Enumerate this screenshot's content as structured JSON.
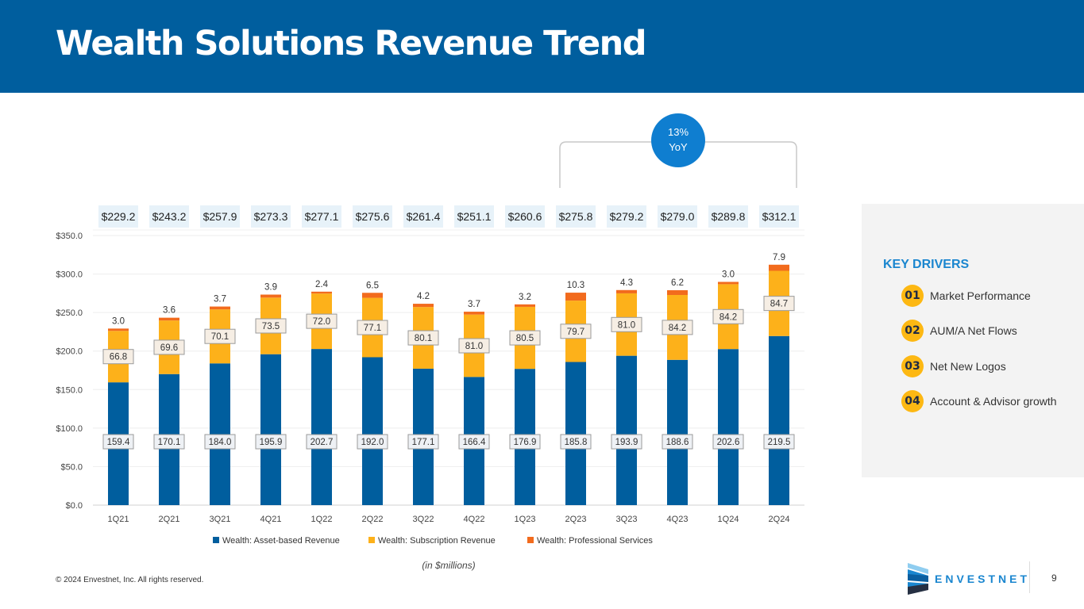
{
  "header": {
    "title": "Wealth Solutions Revenue Trend"
  },
  "callout": {
    "line1": "13%",
    "line2": "YoY",
    "color": "#0f7ed0"
  },
  "chart_data": {
    "type": "bar",
    "stacked": true,
    "title": "",
    "xlabel": "",
    "ylabel": "",
    "units_note": "(in $millions)",
    "categories": [
      "1Q21",
      "2Q21",
      "3Q21",
      "4Q21",
      "1Q22",
      "2Q22",
      "3Q22",
      "4Q22",
      "1Q23",
      "2Q23",
      "3Q23",
      "4Q23",
      "1Q24",
      "2Q24"
    ],
    "series": [
      {
        "name": "Wealth: Asset-based Revenue",
        "color": "#005e9e",
        "values": [
          159.4,
          170.1,
          184.0,
          195.9,
          202.7,
          192.0,
          177.1,
          166.4,
          176.9,
          185.8,
          193.9,
          188.6,
          202.6,
          219.5
        ]
      },
      {
        "name": "Wealth: Subscription Revenue",
        "color": "#fdb11a",
        "values": [
          66.8,
          69.6,
          70.1,
          73.5,
          72.0,
          77.1,
          80.1,
          81.0,
          80.5,
          79.7,
          81.0,
          84.2,
          84.2,
          84.7
        ]
      },
      {
        "name": "Wealth: Professional Services",
        "color": "#f26b1d",
        "values": [
          3.0,
          3.6,
          3.7,
          3.9,
          2.4,
          6.5,
          4.2,
          3.7,
          3.2,
          10.3,
          4.3,
          6.2,
          3.0,
          7.9
        ]
      }
    ],
    "totals": [
      "$229.2",
      "$243.2",
      "$257.9",
      "$273.3",
      "$277.1",
      "$275.6",
      "$261.4",
      "$251.1",
      "$260.6",
      "$275.8",
      "$279.2",
      "$279.0",
      "$289.8",
      "$312.1"
    ],
    "ylim": [
      0,
      350
    ],
    "yticks": [
      0,
      50,
      100,
      150,
      200,
      250,
      300,
      350
    ],
    "ytick_labels": [
      "$0.0",
      "$50.0",
      "$100.0",
      "$150.0",
      "$200.0",
      "$250.0",
      "$300.0",
      "$350.0"
    ],
    "grid": true,
    "legend_position": "bottom",
    "bracket_range": [
      "2Q23",
      "2Q24"
    ]
  },
  "key_drivers": {
    "title": "KEY DRIVERS",
    "items": [
      {
        "num": "01",
        "label": "Market Performance"
      },
      {
        "num": "02",
        "label": "AUM/A Net Flows"
      },
      {
        "num": "03",
        "label": "Net New Logos"
      },
      {
        "num": "04",
        "label": "Account & Advisor growth"
      }
    ]
  },
  "footer": {
    "copyright": "© 2024 Envestnet, Inc. All rights reserved.",
    "brand": "ENVESTNET",
    "page_number": "9"
  }
}
